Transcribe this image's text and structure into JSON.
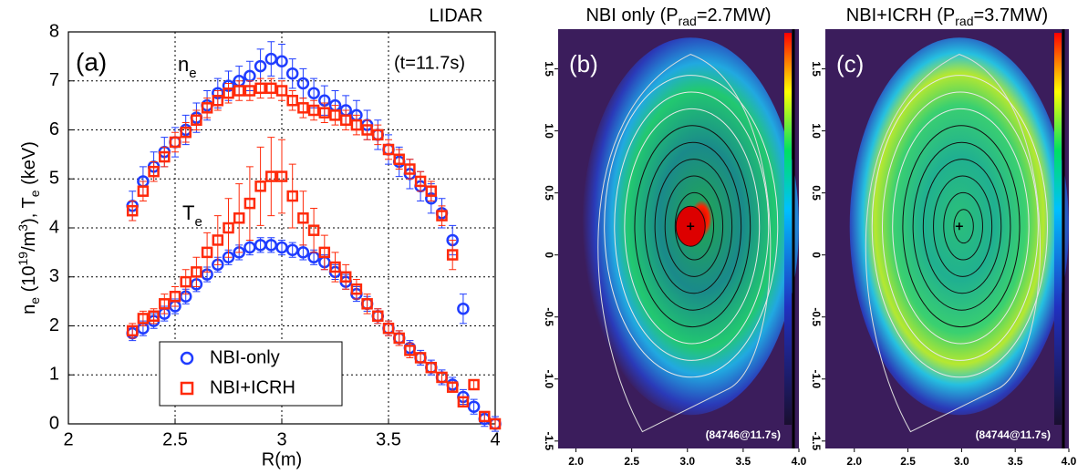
{
  "chart_data": [
    {
      "type": "scatter",
      "panel_label": "(a)",
      "corner_label": "LIDAR",
      "time_label": "(t=11.7s)",
      "ne_label": [
        "n",
        "e"
      ],
      "te_label": [
        "T",
        "e"
      ],
      "ylabel": [
        "n",
        "e",
        " (10",
        "19",
        "/m",
        "3",
        "), T",
        "e",
        " (keV)"
      ],
      "xlabel": "R(m)",
      "xlim": [
        2,
        4
      ],
      "ylim": [
        0,
        8
      ],
      "xticks": [
        2,
        2.5,
        3,
        3.5,
        4
      ],
      "yticks": [
        0,
        1,
        2,
        3,
        4,
        5,
        6,
        7,
        8
      ],
      "grid": true,
      "legend": "lower center",
      "x": [
        2.3,
        2.35,
        2.4,
        2.45,
        2.5,
        2.55,
        2.6,
        2.65,
        2.7,
        2.75,
        2.8,
        2.85,
        2.9,
        2.95,
        3.0,
        3.05,
        3.1,
        3.15,
        3.2,
        3.25,
        3.3,
        3.35,
        3.4,
        3.45,
        3.5,
        3.55,
        3.6,
        3.65,
        3.7,
        3.75,
        3.8,
        3.85,
        3.9,
        3.95,
        4.0
      ],
      "series": [
        {
          "name": "NBI-only",
          "color": "#1f3cff",
          "marker": "circle",
          "ne_values": [
            4.45,
            4.95,
            5.25,
            5.55,
            5.75,
            6.0,
            6.25,
            6.5,
            6.75,
            6.9,
            7.0,
            7.1,
            7.3,
            7.45,
            7.4,
            7.15,
            6.95,
            6.75,
            6.6,
            6.5,
            6.4,
            6.3,
            6.1,
            5.9,
            5.6,
            5.35,
            5.1,
            4.85,
            4.6,
            4.3,
            3.75,
            2.35,
            null,
            null,
            null
          ],
          "ne_errors": [
            0.3,
            0.3,
            0.3,
            0.3,
            0.3,
            0.3,
            0.3,
            0.3,
            0.3,
            0.3,
            0.3,
            0.3,
            0.35,
            0.35,
            0.35,
            0.3,
            0.3,
            0.3,
            0.3,
            0.3,
            0.3,
            0.3,
            0.3,
            0.3,
            0.3,
            0.3,
            0.3,
            0.3,
            0.3,
            0.3,
            0.3,
            0.3,
            null,
            null,
            null
          ],
          "te_values": [
            1.85,
            1.95,
            2.1,
            2.25,
            2.4,
            2.6,
            2.85,
            3.05,
            3.25,
            3.4,
            3.5,
            3.6,
            3.65,
            3.65,
            3.6,
            3.55,
            3.5,
            3.4,
            3.3,
            3.1,
            2.9,
            2.65,
            2.45,
            2.2,
            1.95,
            1.75,
            1.55,
            1.35,
            1.15,
            0.95,
            0.8,
            0.55,
            0.35,
            0.1,
            0.0
          ],
          "te_errors": [
            0.15,
            0.15,
            0.15,
            0.15,
            0.15,
            0.15,
            0.15,
            0.15,
            0.15,
            0.15,
            0.15,
            0.15,
            0.15,
            0.15,
            0.15,
            0.15,
            0.15,
            0.15,
            0.15,
            0.15,
            0.15,
            0.15,
            0.15,
            0.15,
            0.15,
            0.15,
            0.15,
            0.15,
            0.15,
            0.15,
            0.15,
            0.15,
            0.15,
            0.15,
            0.15
          ]
        },
        {
          "name": "NBI+ICRH",
          "color": "#ff2a0a",
          "marker": "square",
          "ne_values": [
            4.35,
            4.75,
            5.15,
            5.45,
            5.75,
            5.95,
            6.2,
            6.45,
            6.6,
            6.75,
            6.8,
            6.8,
            6.85,
            6.85,
            6.8,
            6.6,
            6.45,
            6.4,
            6.35,
            6.3,
            6.2,
            6.1,
            6.0,
            5.9,
            5.6,
            5.4,
            5.2,
            4.95,
            4.75,
            4.25,
            3.45,
            null,
            null,
            null,
            null
          ],
          "ne_errors": [
            0.2,
            0.2,
            0.2,
            0.2,
            0.2,
            0.2,
            0.2,
            0.2,
            0.2,
            0.2,
            0.2,
            0.2,
            0.2,
            0.2,
            0.2,
            0.2,
            0.2,
            0.2,
            0.2,
            0.2,
            0.2,
            0.2,
            0.2,
            0.2,
            0.2,
            0.2,
            0.2,
            0.2,
            0.2,
            0.2,
            0.3,
            null,
            null,
            null,
            null
          ],
          "te_values": [
            1.9,
            2.15,
            2.2,
            2.45,
            2.6,
            2.9,
            3.1,
            3.5,
            3.75,
            4.0,
            4.2,
            4.5,
            4.85,
            5.05,
            5.05,
            4.65,
            4.2,
            3.95,
            3.5,
            3.2,
            3.0,
            2.75,
            2.45,
            2.2,
            1.95,
            1.75,
            1.5,
            1.35,
            1.15,
            0.95,
            0.75,
            0.45,
            0.8,
            0.15,
            0.0
          ],
          "te_errors": [
            0.15,
            0.15,
            0.15,
            0.2,
            0.2,
            0.25,
            0.3,
            0.4,
            0.5,
            0.6,
            0.7,
            0.75,
            0.8,
            0.8,
            0.75,
            0.65,
            0.55,
            0.45,
            0.35,
            0.3,
            0.25,
            0.2,
            0.2,
            0.15,
            0.15,
            0.15,
            0.15,
            0.1,
            0.1,
            0.1,
            0.1,
            0.1,
            0.1,
            0.1,
            0.1
          ]
        }
      ]
    },
    {
      "type": "image",
      "title": [
        "NBI only (P",
        "rad",
        "=2.7MW)"
      ],
      "panel_label": "(b)",
      "shot_label": "(84746@11.7s)",
      "variant": "peaked",
      "xlim": [
        1.84,
        4.0
      ],
      "ylim": [
        -1.56,
        1.82
      ],
      "xticks": [
        {
          "value": 2,
          "label": "2.0"
        },
        {
          "value": 2.5,
          "label": "2.5"
        },
        {
          "value": 3,
          "label": "3.0"
        },
        {
          "value": 3.5,
          "label": "3.5"
        },
        {
          "value": 4,
          "label": "4.0"
        }
      ],
      "yticks": [
        {
          "value": -1.5,
          "label": "-1.5"
        },
        {
          "value": -1,
          "label": "-1.0"
        },
        {
          "value": -0.5,
          "label": "-0.5"
        },
        0,
        {
          "value": 0.5,
          "label": "0.5"
        },
        {
          "value": 1,
          "label": "1.0"
        },
        {
          "value": 1.5,
          "label": "1.5"
        }
      ]
    },
    {
      "type": "image",
      "title": [
        "NBI+ICRH (P",
        "rad",
        "=3.7MW)"
      ],
      "panel_label": "(c)",
      "shot_label": "(84744@11.7s)",
      "variant": "hollow",
      "xlim": [
        1.73,
        4.0
      ],
      "ylim": [
        -1.56,
        1.82
      ],
      "xticks": [
        {
          "value": 2,
          "label": "2.0"
        },
        {
          "value": 2.5,
          "label": "2.5"
        },
        {
          "value": 3,
          "label": "3.0"
        },
        {
          "value": 3.5,
          "label": "3.5"
        },
        {
          "value": 4,
          "label": "4.0"
        }
      ],
      "yticks": [
        {
          "value": -1.5,
          "label": "-1.5"
        },
        {
          "value": -1,
          "label": "-1.0"
        },
        {
          "value": -0.5,
          "label": "-0.5"
        },
        0,
        {
          "value": 0.5,
          "label": "0.5"
        },
        {
          "value": 1,
          "label": "1.0"
        },
        {
          "value": 1.5,
          "label": "1.5"
        }
      ]
    }
  ]
}
